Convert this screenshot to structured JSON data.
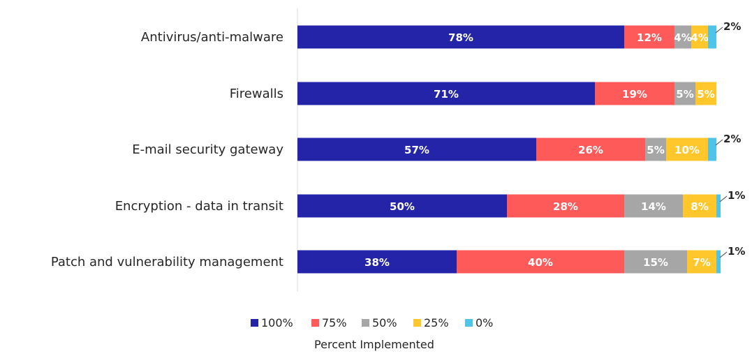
{
  "chart_data": {
    "type": "bar",
    "orientation": "horizontal",
    "stacked": true,
    "categories": [
      "Antivirus/anti-malware",
      "Firewalls",
      "E-mail security gateway",
      "Encryption - data in transit",
      "Patch and vulnerability management"
    ],
    "series": [
      {
        "name": "100%",
        "color": "#2424A8",
        "values": [
          78,
          71,
          57,
          50,
          38
        ]
      },
      {
        "name": "75%",
        "color": "#FF5A5A",
        "values": [
          12,
          19,
          26,
          28,
          40
        ]
      },
      {
        "name": "50%",
        "color": "#A6A6A6",
        "values": [
          4,
          5,
          5,
          14,
          15
        ]
      },
      {
        "name": "25%",
        "color": "#FFC72C",
        "values": [
          4,
          5,
          10,
          8,
          7
        ]
      },
      {
        "name": "0%",
        "color": "#4FC3E8",
        "values": [
          2,
          0,
          2,
          1,
          1
        ]
      }
    ],
    "data_labels": [
      [
        "78%",
        "12%",
        "4%",
        "4%",
        "2%"
      ],
      [
        "71%",
        "19%",
        "5%",
        "5%",
        ""
      ],
      [
        "57%",
        "26%",
        "5%",
        "10%",
        "2%"
      ],
      [
        "50%",
        "28%",
        "14%",
        "8%",
        "1%"
      ],
      [
        "38%",
        "40%",
        "15%",
        "7%",
        "1%"
      ]
    ],
    "xlim": [
      0,
      100
    ],
    "xlabel": "Percent Implemented",
    "legend": {
      "position": "bottom"
    },
    "grid": false
  }
}
